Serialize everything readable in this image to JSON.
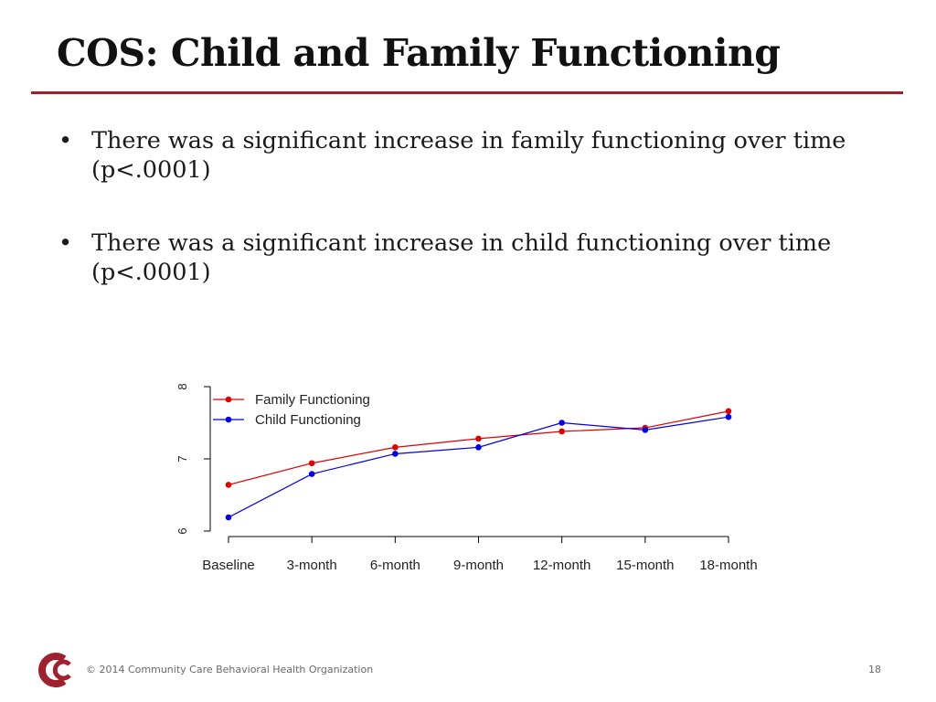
{
  "slide": {
    "title": "COS: Child and Family Functioning",
    "accent_color": "#a0202e",
    "bullets": [
      "There was a significant increase in family functioning over time (p<.0001)",
      "There was a significant increase in child functioning over time (p<.0001)"
    ]
  },
  "chart_data": {
    "type": "line",
    "categories": [
      "Baseline",
      "3-month",
      "6-month",
      "9-month",
      "12-month",
      "15-month",
      "18-month"
    ],
    "ylim": [
      6,
      8
    ],
    "yticks": [
      "6",
      "7",
      "8"
    ],
    "legend_position": "top-left",
    "grid": false,
    "series": [
      {
        "name": "Family Functioning",
        "color": "#e00000",
        "values": [
          6.64,
          6.94,
          7.16,
          7.28,
          7.38,
          7.43,
          7.66
        ]
      },
      {
        "name": "Child Functioning",
        "color": "#0000ee",
        "values": [
          6.19,
          6.79,
          7.07,
          7.16,
          7.5,
          7.4,
          7.58
        ]
      }
    ]
  },
  "footer": {
    "copyright": "© 2014 Community Care Behavioral Health Organization",
    "page_number": "18",
    "logo_color": "#a0202e"
  }
}
